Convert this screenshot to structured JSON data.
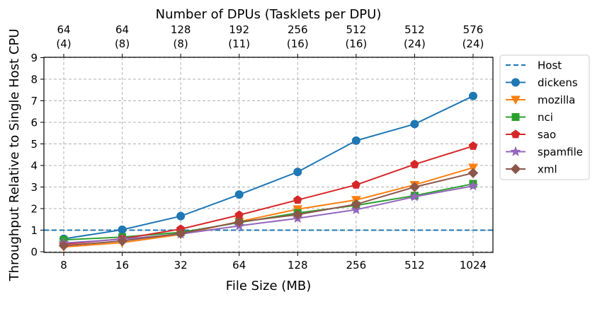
{
  "chart_data": {
    "type": "line",
    "xlabel": "File Size (MB)",
    "ylabel": "Throughput Relative to Single Host CPU",
    "top_axis_label": "Number of DPUs (Tasklets per DPU)",
    "categories": [
      "8",
      "16",
      "32",
      "64",
      "128",
      "256",
      "512",
      "1024"
    ],
    "top_ticks": [
      {
        "dpus": "64",
        "tasklets": "(4)"
      },
      {
        "dpus": "64",
        "tasklets": "(8)"
      },
      {
        "dpus": "128",
        "tasklets": "(8)"
      },
      {
        "dpus": "192",
        "tasklets": "(11)"
      },
      {
        "dpus": "256",
        "tasklets": "(16)"
      },
      {
        "dpus": "512",
        "tasklets": "(16)"
      },
      {
        "dpus": "512",
        "tasklets": "(24)"
      },
      {
        "dpus": "576",
        "tasklets": "(24)"
      }
    ],
    "ylim": [
      0,
      9
    ],
    "yticks": [
      0,
      1,
      2,
      3,
      4,
      5,
      6,
      7,
      8,
      9
    ],
    "grid": true,
    "legend_position": "right-outside",
    "baseline": {
      "name": "Host",
      "value": 1,
      "color": "#1f77b4",
      "style": "dashed"
    },
    "series": [
      {
        "name": "dickens",
        "color": "#1f77b4",
        "marker": "circle",
        "values": [
          0.6,
          1.02,
          1.65,
          2.65,
          3.7,
          5.15,
          5.92,
          7.22
        ]
      },
      {
        "name": "mozilla",
        "color": "#ff7f0e",
        "marker": "triangle-down",
        "values": [
          0.22,
          0.42,
          0.8,
          1.4,
          1.97,
          2.4,
          3.1,
          3.9
        ]
      },
      {
        "name": "nci",
        "color": "#2ca02c",
        "marker": "square",
        "values": [
          0.55,
          0.68,
          0.9,
          1.35,
          1.8,
          2.15,
          2.6,
          3.15
        ]
      },
      {
        "name": "sao",
        "color": "#d62728",
        "marker": "pentagon",
        "values": [
          0.35,
          0.6,
          1.05,
          1.7,
          2.4,
          3.1,
          4.05,
          4.9
        ]
      },
      {
        "name": "spamfile",
        "color": "#9467bd",
        "marker": "star",
        "values": [
          0.4,
          0.58,
          0.82,
          1.2,
          1.55,
          1.95,
          2.55,
          3.05
        ]
      },
      {
        "name": "xml",
        "color": "#8c564b",
        "marker": "diamond",
        "values": [
          0.28,
          0.5,
          0.85,
          1.38,
          1.72,
          2.2,
          3.0,
          3.65
        ]
      }
    ]
  }
}
